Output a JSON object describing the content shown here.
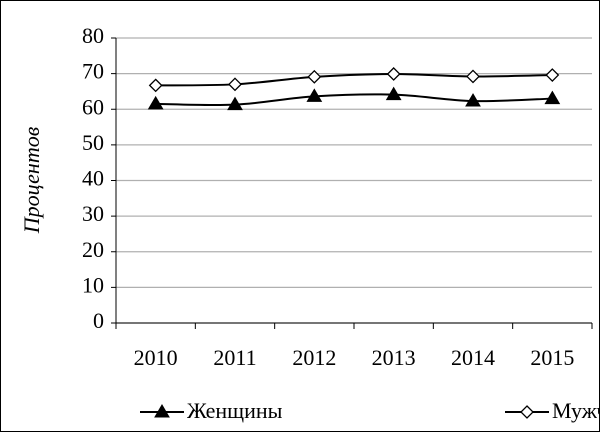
{
  "chart_data": {
    "type": "line",
    "y_label": "Процентов",
    "categories": [
      "2010",
      "2011",
      "2012",
      "2013",
      "2014",
      "2015"
    ],
    "series": [
      {
        "name": "Женщины",
        "color": "#000000",
        "marker": "triangle",
        "values": [
          61.5,
          61.3,
          63.6,
          64.1,
          62.3,
          63.0
        ]
      },
      {
        "name": "Мужчины",
        "color": "#000000",
        "marker": "diamond",
        "values": [
          66.7,
          67.0,
          69.1,
          69.9,
          69.2,
          69.6
        ]
      }
    ],
    "ylim": [
      0,
      80
    ],
    "yticks": [
      0,
      10,
      20,
      30,
      40,
      50,
      60,
      70,
      80
    ],
    "grid": true,
    "legend": "bottom"
  }
}
